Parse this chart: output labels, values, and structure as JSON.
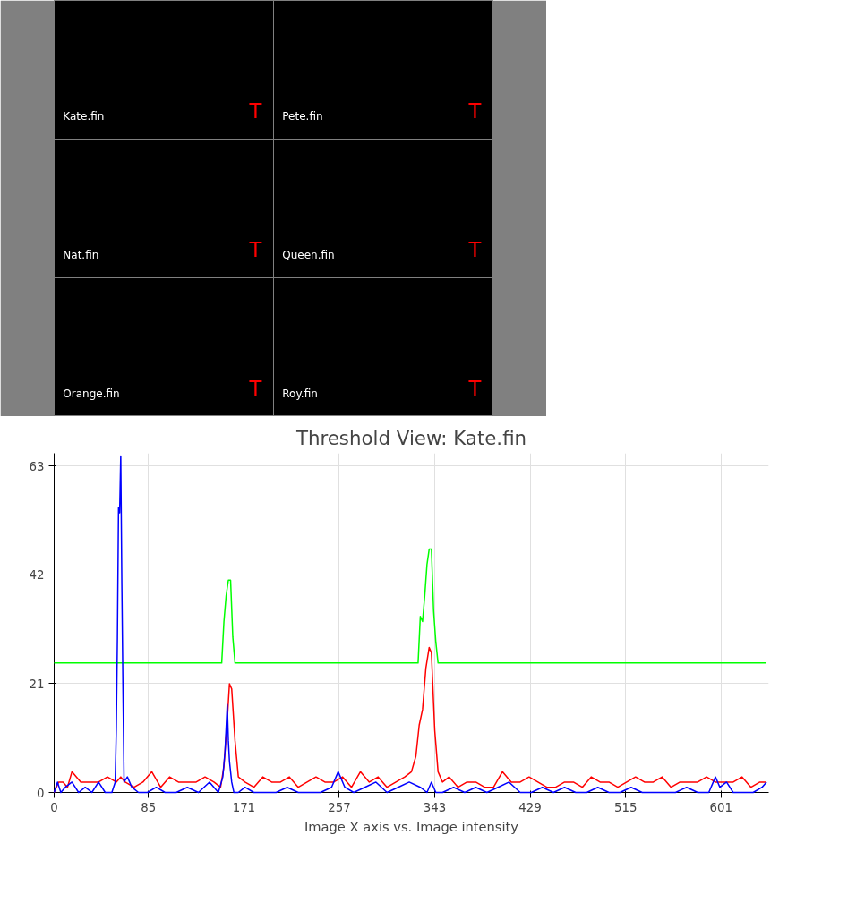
{
  "chart_data": [
    {
      "type": "other",
      "annotations": [
        "Kate.fin",
        "T",
        "Pete.fin",
        "T",
        "Nat.fin",
        "T",
        "Queen.fin",
        "T",
        "Orange.fin",
        "T",
        "Roy.fin",
        "T"
      ]
    },
    {
      "type": "line",
      "title": "Threshold View: Kate.fin",
      "xlabel": "Image X axis vs. Image intensity",
      "xlim": [
        0,
        644
      ],
      "xticks": [
        0,
        85,
        171,
        257,
        343,
        429,
        515,
        601
      ],
      "ylim": [
        0,
        65.5
      ],
      "yticks": [
        0,
        21,
        42,
        63
      ],
      "grid": true,
      "series": [
        {
          "color": "#00ff00",
          "x": [
            0,
            151,
            153,
            155,
            157,
            159,
            161,
            163,
            328,
            330,
            332,
            334,
            336,
            338,
            340,
            342,
            344,
            346,
            642
          ],
          "values": [
            25,
            25,
            33,
            38,
            41,
            41,
            30,
            25,
            25,
            34,
            33,
            38,
            44,
            47,
            47,
            35,
            29,
            25,
            25
          ]
        },
        {
          "color": "#ff0000",
          "x": [
            0,
            4,
            8,
            12,
            16,
            24,
            32,
            40,
            48,
            56,
            60,
            64,
            72,
            80,
            88,
            96,
            104,
            112,
            120,
            128,
            136,
            144,
            150,
            153,
            156,
            158,
            160,
            163,
            166,
            172,
            180,
            188,
            196,
            204,
            212,
            220,
            228,
            236,
            244,
            252,
            260,
            268,
            276,
            284,
            292,
            300,
            308,
            316,
            322,
            326,
            329,
            332,
            335,
            338,
            340,
            343,
            346,
            350,
            356,
            364,
            372,
            380,
            388,
            396,
            404,
            412,
            420,
            428,
            436,
            444,
            452,
            460,
            468,
            476,
            484,
            492,
            500,
            508,
            516,
            524,
            532,
            540,
            548,
            556,
            564,
            572,
            580,
            588,
            596,
            604,
            612,
            620,
            628,
            636,
            642
          ],
          "values": [
            0,
            2,
            2,
            1,
            4,
            2,
            2,
            2,
            3,
            2,
            3,
            2,
            1,
            2,
            4,
            1,
            3,
            2,
            2,
            2,
            3,
            2,
            1,
            5,
            14,
            21,
            20,
            10,
            3,
            2,
            1,
            3,
            2,
            2,
            3,
            1,
            2,
            3,
            2,
            2,
            3,
            1,
            4,
            2,
            3,
            1,
            2,
            3,
            4,
            7,
            13,
            16,
            24,
            28,
            27,
            12,
            4,
            2,
            3,
            1,
            2,
            2,
            1,
            1,
            4,
            2,
            2,
            3,
            2,
            1,
            1,
            2,
            2,
            1,
            3,
            2,
            2,
            1,
            2,
            3,
            2,
            2,
            3,
            1,
            2,
            2,
            2,
            3,
            2,
            2,
            2,
            3,
            1,
            2,
            2
          ]
        },
        {
          "color": "#0000ff",
          "x": [
            0,
            3,
            6,
            10,
            16,
            22,
            28,
            34,
            40,
            46,
            52,
            55,
            56,
            57,
            58,
            59,
            60,
            61,
            62,
            63,
            66,
            70,
            76,
            84,
            92,
            100,
            110,
            120,
            130,
            140,
            148,
            152,
            154,
            156,
            157,
            158,
            160,
            162,
            166,
            172,
            180,
            190,
            200,
            210,
            220,
            230,
            240,
            250,
            256,
            262,
            270,
            280,
            290,
            300,
            310,
            320,
            330,
            336,
            340,
            344,
            350,
            360,
            370,
            380,
            390,
            400,
            410,
            420,
            430,
            440,
            450,
            460,
            470,
            480,
            490,
            500,
            510,
            520,
            530,
            540,
            550,
            560,
            570,
            580,
            590,
            596,
            600,
            606,
            612,
            620,
            630,
            638,
            642
          ],
          "values": [
            0,
            2,
            0,
            1,
            2,
            0,
            1,
            0,
            2,
            0,
            0,
            2,
            12,
            30,
            55,
            54,
            65,
            40,
            20,
            2,
            3,
            1,
            0,
            0,
            1,
            0,
            0,
            1,
            0,
            2,
            0,
            3,
            8,
            17,
            10,
            6,
            2,
            0,
            0,
            1,
            0,
            0,
            0,
            1,
            0,
            0,
            0,
            1,
            4,
            1,
            0,
            1,
            2,
            0,
            1,
            2,
            1,
            0,
            2,
            0,
            0,
            1,
            0,
            1,
            0,
            1,
            2,
            0,
            0,
            1,
            0,
            1,
            0,
            0,
            1,
            0,
            0,
            1,
            0,
            0,
            0,
            0,
            1,
            0,
            0,
            3,
            1,
            2,
            0,
            0,
            0,
            1,
            2
          ]
        }
      ]
    }
  ]
}
